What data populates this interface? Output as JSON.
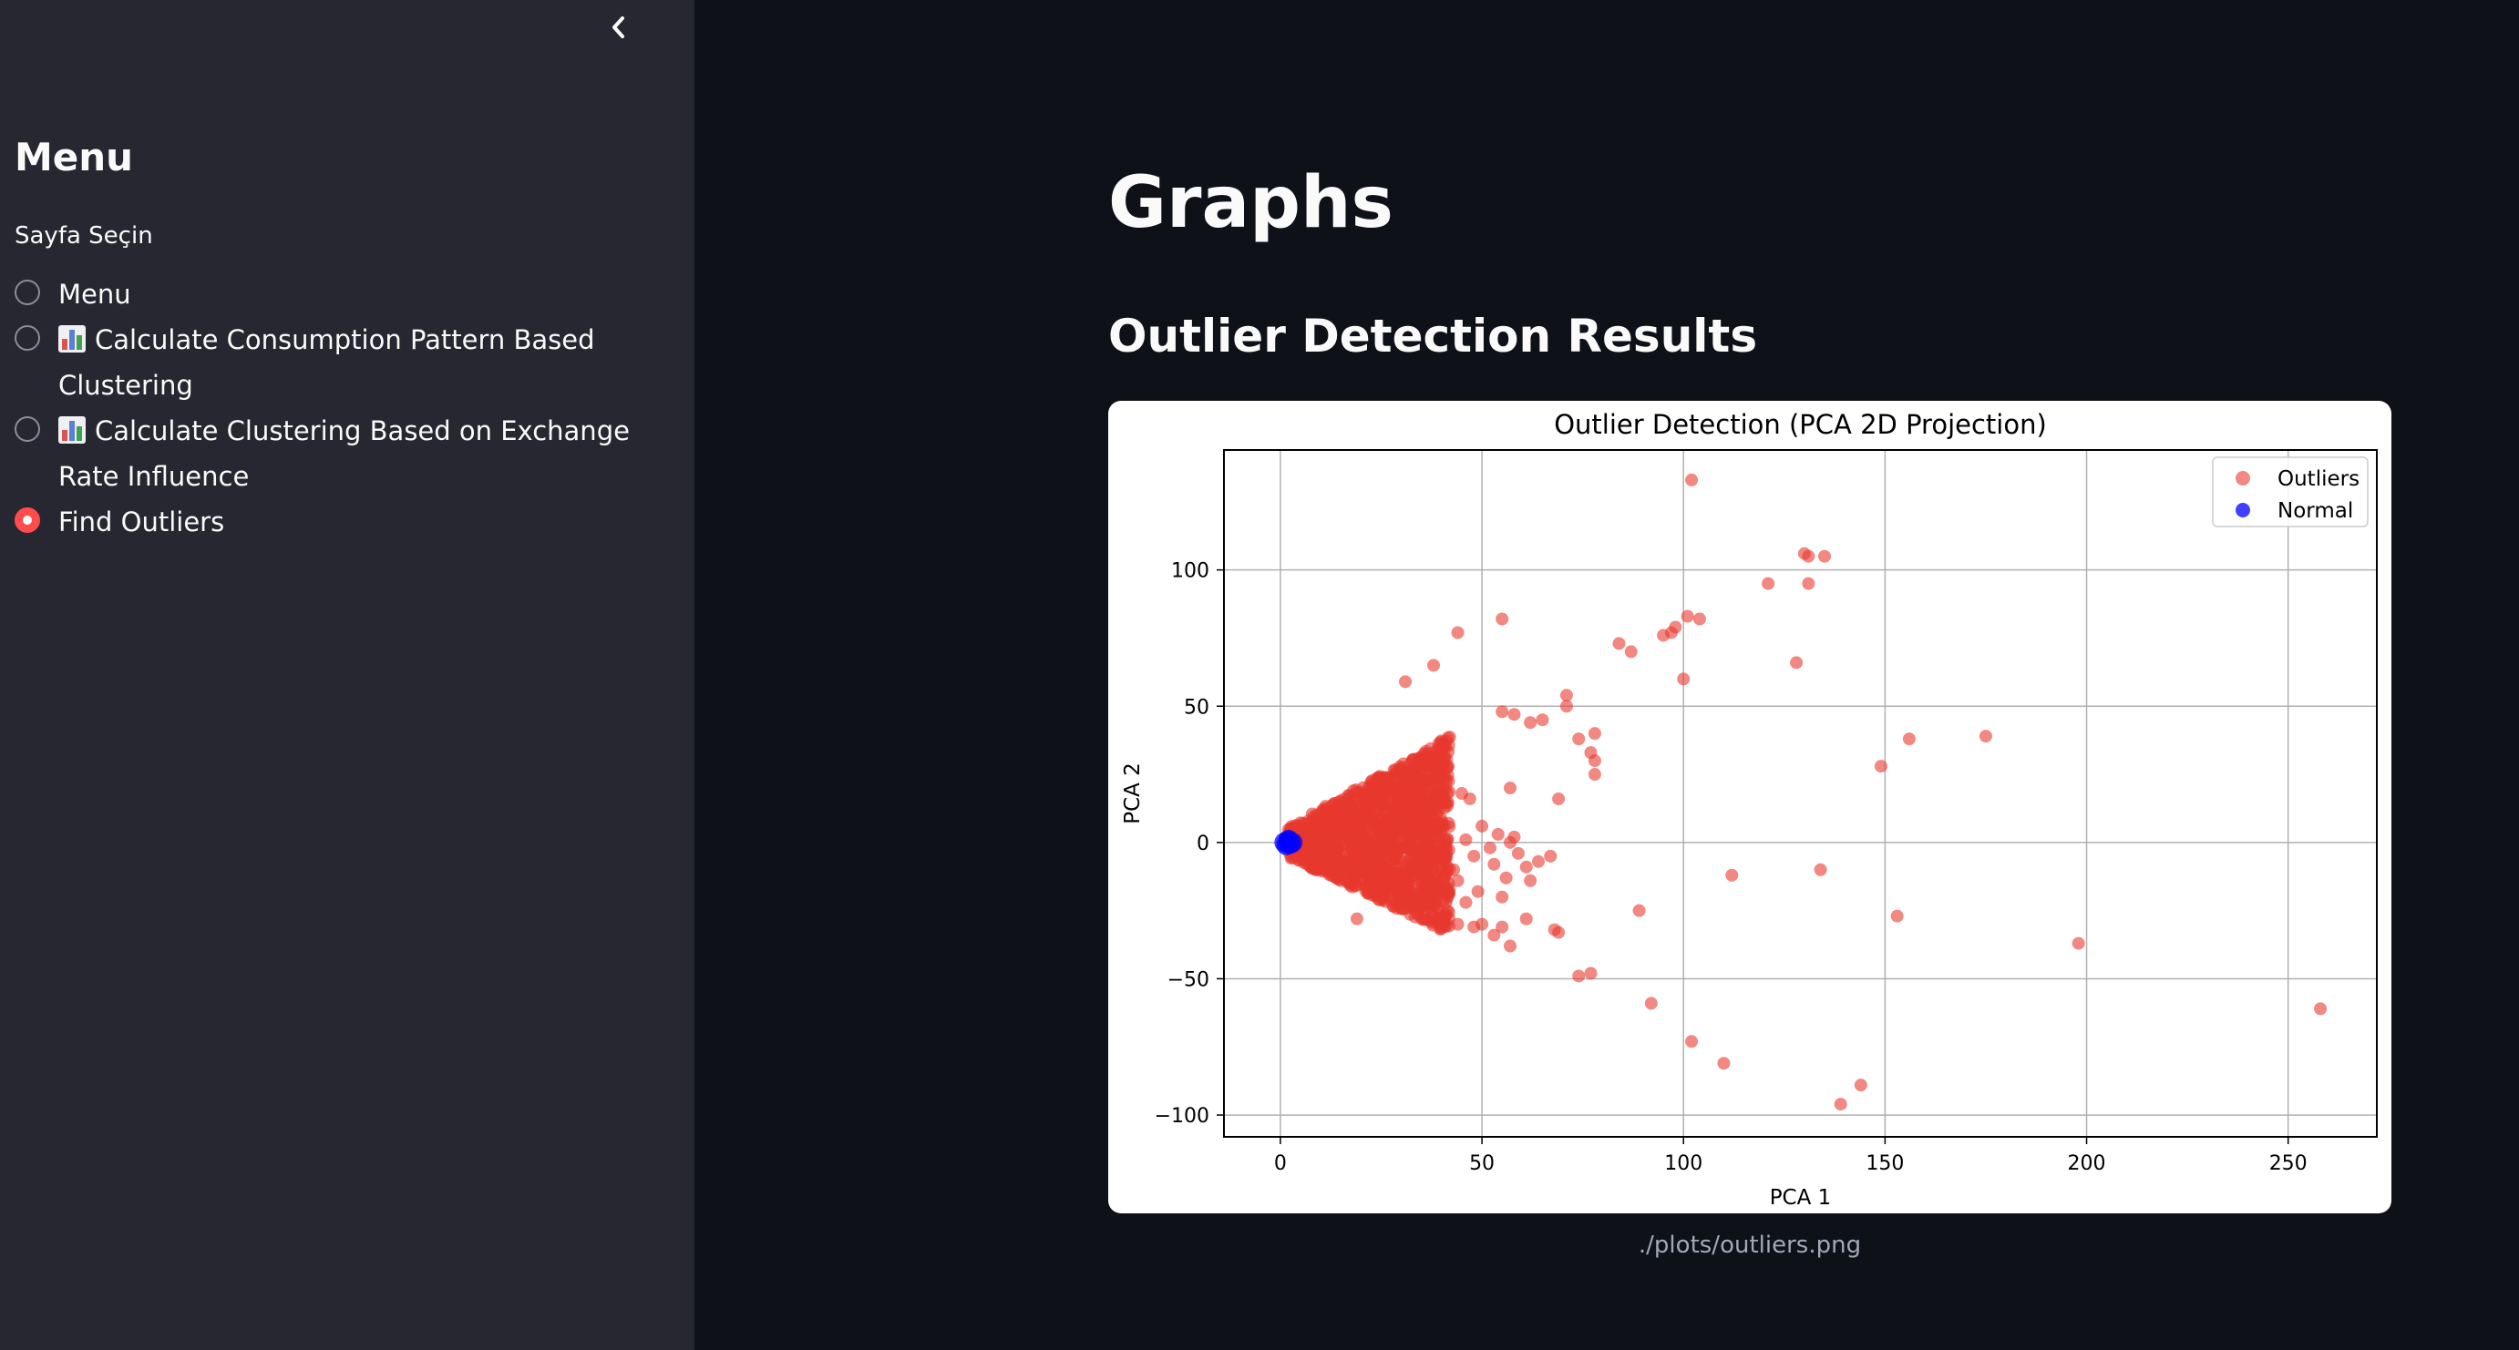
{
  "sidebar": {
    "title": "Menu",
    "radio_label": "Sayfa Seçin",
    "options": [
      {
        "label": "Menu",
        "icon": null,
        "selected": false
      },
      {
        "label": "Calculate Consumption Pattern Based Clustering",
        "icon": "bar-chart-emoji",
        "selected": false
      },
      {
        "label": "Calculate Clustering Based on Exchange Rate Influence",
        "icon": "bar-chart-emoji",
        "selected": false
      },
      {
        "label": "Find Outliers",
        "icon": null,
        "selected": true
      }
    ]
  },
  "main": {
    "title": "Graphs",
    "section_title": "Outlier Detection Results",
    "image_caption": "./plots/outliers.png"
  },
  "colors": {
    "accent": "#ff4b4b",
    "outliers": "#e8392e",
    "normal": "#0000ff"
  },
  "chart_data": {
    "type": "scatter",
    "title": "Outlier Detection (PCA 2D Projection)",
    "xlabel": "PCA 1",
    "ylabel": "PCA 2",
    "xlim": [
      -14,
      272
    ],
    "ylim": [
      -108,
      144
    ],
    "xticks": [
      0,
      50,
      100,
      150,
      200,
      250
    ],
    "yticks": [
      -100,
      -50,
      0,
      50,
      100
    ],
    "grid": true,
    "legend_position": "top-right",
    "series": [
      {
        "name": "Outliers",
        "color": "#e8392e",
        "points": [
          [
            102,
            133
          ],
          [
            130,
            106
          ],
          [
            131,
            105
          ],
          [
            135,
            105
          ],
          [
            121,
            95
          ],
          [
            131,
            95
          ],
          [
            101,
            83
          ],
          [
            104,
            82
          ],
          [
            55,
            82
          ],
          [
            44,
            77
          ],
          [
            97,
            77
          ],
          [
            98,
            79
          ],
          [
            95,
            76
          ],
          [
            84,
            73
          ],
          [
            87,
            70
          ],
          [
            128,
            66
          ],
          [
            38,
            65
          ],
          [
            31,
            59
          ],
          [
            100,
            60
          ],
          [
            71,
            54
          ],
          [
            71,
            50
          ],
          [
            65,
            45
          ],
          [
            62,
            44
          ],
          [
            55,
            48
          ],
          [
            58,
            47
          ],
          [
            78,
            40
          ],
          [
            74,
            38
          ],
          [
            77,
            33
          ],
          [
            78,
            30
          ],
          [
            78,
            25
          ],
          [
            57,
            20
          ],
          [
            69,
            16
          ],
          [
            45,
            18
          ],
          [
            47,
            16
          ],
          [
            41,
            20
          ],
          [
            38,
            23
          ],
          [
            33,
            26
          ],
          [
            28,
            24
          ],
          [
            156,
            38
          ],
          [
            175,
            39
          ],
          [
            149,
            28
          ],
          [
            50,
            6
          ],
          [
            54,
            3
          ],
          [
            58,
            2
          ],
          [
            57,
            0
          ],
          [
            46,
            1
          ],
          [
            52,
            -2
          ],
          [
            59,
            -4
          ],
          [
            48,
            -5
          ],
          [
            64,
            -7
          ],
          [
            67,
            -5
          ],
          [
            61,
            -9
          ],
          [
            53,
            -8
          ],
          [
            43,
            -10
          ],
          [
            44,
            -14
          ],
          [
            56,
            -13
          ],
          [
            62,
            -14
          ],
          [
            49,
            -18
          ],
          [
            55,
            -20
          ],
          [
            46,
            -22
          ],
          [
            40,
            -27
          ],
          [
            44,
            -30
          ],
          [
            48,
            -31
          ],
          [
            50,
            -30
          ],
          [
            53,
            -34
          ],
          [
            55,
            -31
          ],
          [
            57,
            -38
          ],
          [
            61,
            -28
          ],
          [
            68,
            -32
          ],
          [
            69,
            -33
          ],
          [
            19,
            -28
          ],
          [
            30,
            -22
          ],
          [
            35,
            -28
          ],
          [
            112,
            -12
          ],
          [
            134,
            -10
          ],
          [
            89,
            -25
          ],
          [
            153,
            -27
          ],
          [
            198,
            -37
          ],
          [
            74,
            -49
          ],
          [
            77,
            -48
          ],
          [
            92,
            -59
          ],
          [
            102,
            -73
          ],
          [
            110,
            -81
          ],
          [
            144,
            -89
          ],
          [
            139,
            -96
          ],
          [
            258,
            -61
          ]
        ],
        "dense_cluster": {
          "apex": [
            2,
            0
          ],
          "extent_x": [
            0,
            42
          ],
          "extent_y": [
            -31,
            37
          ]
        }
      },
      {
        "name": "Normal",
        "color": "#0000ff",
        "points": [
          [
            1,
            0
          ],
          [
            2,
            0.5
          ],
          [
            2.5,
            -0.5
          ],
          [
            3,
            0
          ],
          [
            1.5,
            -1
          ],
          [
            2,
            1
          ]
        ]
      }
    ]
  }
}
